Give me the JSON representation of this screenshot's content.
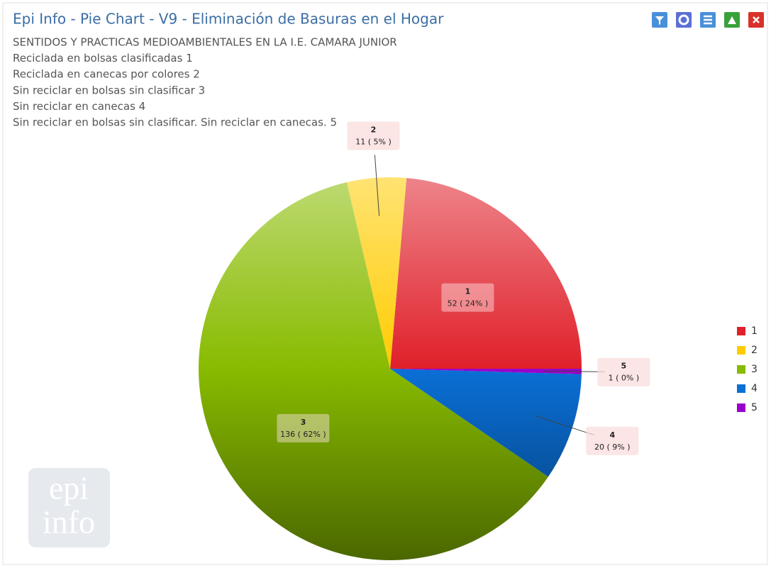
{
  "chart_data": {
    "type": "pie",
    "title": "Epi Info - Pie Chart - V9 -  Eliminación de Basuras en el Hogar",
    "subtitle": [
      "SENTIDOS Y PRACTICAS MEDIOAMBIENTALES EN LA I.E. CAMARA JUNIOR",
      "Reciclada en bolsas clasificadas 1",
      "Reciclada en canecas por colores 2",
      "Sin reciclar en bolsas sin clasificar 3",
      "Sin reciclar en canecas 4",
      "Sin reciclar en bolsas sin clasificar. Sin reciclar en canecas. 5"
    ],
    "categories": [
      "1",
      "2",
      "3",
      "4",
      "5"
    ],
    "values": [
      52,
      11,
      136,
      20,
      1
    ],
    "value_labels": [
      "52 ( 24% )",
      "11 ( 5% )",
      "136 ( 62% )",
      "20 ( 9% )",
      "1 ( 0% )"
    ],
    "colors": [
      "#e0202a",
      "#ffcc00",
      "#88bb00",
      "#0a6fd6",
      "#9900cc"
    ],
    "legend": "right",
    "logo": [
      "epi",
      "info"
    ]
  }
}
